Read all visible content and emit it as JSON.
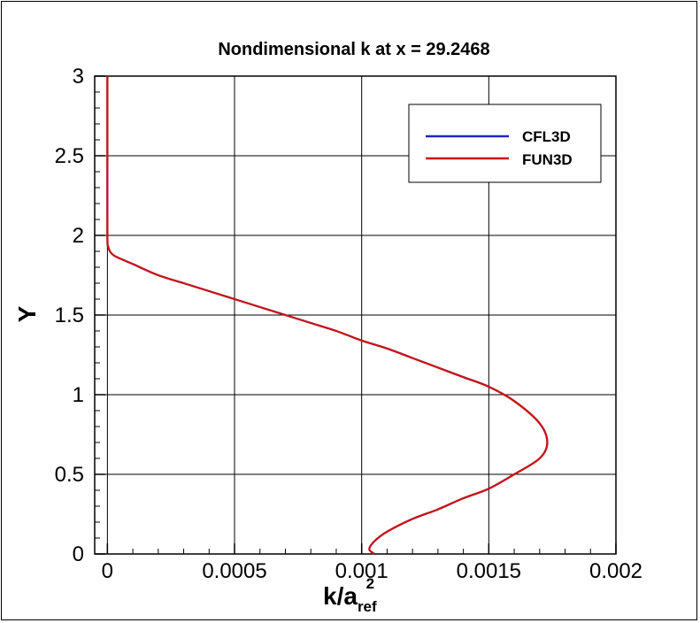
{
  "chart_data": {
    "type": "line",
    "title": "Nondimensional k at x = 29.2468",
    "xlabel": {
      "base": "k/a",
      "subscript": "ref",
      "superscript": "2"
    },
    "ylabel": "Y",
    "xlim": [
      -5e-05,
      0.002
    ],
    "ylim": [
      0,
      3
    ],
    "x_ticks": [
      0,
      0.0005,
      0.001,
      0.0015,
      0.002
    ],
    "x_tick_labels": [
      "0",
      "0.0005",
      "0.001",
      "0.0015",
      "0.002"
    ],
    "y_ticks": [
      0,
      0.5,
      1,
      1.5,
      2,
      2.5,
      3
    ],
    "y_tick_labels": [
      "0",
      "0.5",
      "1",
      "1.5",
      "2",
      "2.5",
      "3"
    ],
    "grid": true,
    "legend_position": "top-right",
    "series": [
      {
        "name": "CFL3D",
        "color": "#2222cc",
        "points": [
          [
            0.0,
            3.0
          ],
          [
            0.0,
            2.5
          ],
          [
            0.0,
            2.0
          ],
          [
            3e-06,
            1.93
          ],
          [
            1e-05,
            1.9
          ],
          [
            3e-05,
            1.87
          ],
          [
            0.0001,
            1.82
          ],
          [
            0.0002,
            1.75
          ],
          [
            0.0003,
            1.7
          ],
          [
            0.0004,
            1.65
          ],
          [
            0.0005,
            1.6
          ],
          [
            0.0006,
            1.55
          ],
          [
            0.0007,
            1.5
          ],
          [
            0.0008,
            1.45
          ],
          [
            0.0009,
            1.4
          ],
          [
            0.001,
            1.34
          ],
          [
            0.0011,
            1.29
          ],
          [
            0.0012,
            1.23
          ],
          [
            0.0013,
            1.17
          ],
          [
            0.0014,
            1.11
          ],
          [
            0.0015,
            1.05
          ],
          [
            0.0016,
            0.96
          ],
          [
            0.0017,
            0.82
          ],
          [
            0.00173,
            0.7
          ],
          [
            0.0017,
            0.6
          ],
          [
            0.0016,
            0.5
          ],
          [
            0.0015,
            0.41
          ],
          [
            0.0014,
            0.35
          ],
          [
            0.0013,
            0.28
          ],
          [
            0.0012,
            0.22
          ],
          [
            0.0011,
            0.14
          ],
          [
            0.00105,
            0.08
          ],
          [
            0.00103,
            0.03
          ],
          [
            0.00105,
            0.0
          ]
        ]
      },
      {
        "name": "FUN3D",
        "color": "#cc1111",
        "points": [
          [
            0.0,
            3.0
          ],
          [
            0.0,
            2.5
          ],
          [
            0.0,
            2.0
          ],
          [
            3e-06,
            1.93
          ],
          [
            1e-05,
            1.9
          ],
          [
            3e-05,
            1.87
          ],
          [
            0.0001,
            1.82
          ],
          [
            0.0002,
            1.75
          ],
          [
            0.0003,
            1.7
          ],
          [
            0.0004,
            1.65
          ],
          [
            0.0005,
            1.6
          ],
          [
            0.0006,
            1.55
          ],
          [
            0.0007,
            1.5
          ],
          [
            0.0008,
            1.45
          ],
          [
            0.0009,
            1.4
          ],
          [
            0.001,
            1.34
          ],
          [
            0.0011,
            1.29
          ],
          [
            0.0012,
            1.23
          ],
          [
            0.0013,
            1.17
          ],
          [
            0.0014,
            1.11
          ],
          [
            0.0015,
            1.05
          ],
          [
            0.0016,
            0.96
          ],
          [
            0.0017,
            0.82
          ],
          [
            0.00173,
            0.7
          ],
          [
            0.0017,
            0.6
          ],
          [
            0.0016,
            0.5
          ],
          [
            0.0015,
            0.41
          ],
          [
            0.0014,
            0.35
          ],
          [
            0.0013,
            0.28
          ],
          [
            0.0012,
            0.22
          ],
          [
            0.0011,
            0.14
          ],
          [
            0.00105,
            0.08
          ],
          [
            0.00103,
            0.03
          ],
          [
            0.00105,
            0.0
          ]
        ]
      }
    ]
  }
}
